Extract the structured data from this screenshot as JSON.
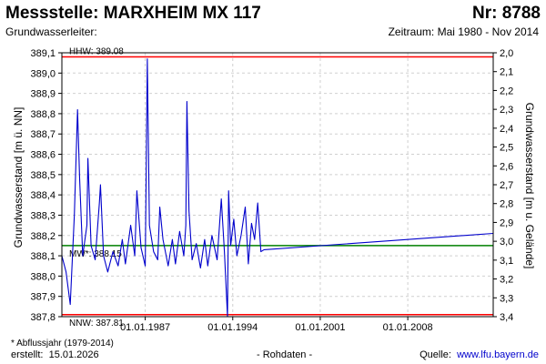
{
  "header": {
    "title": "Messstelle: MARXHEIM MX 117",
    "number": "Nr: 8788",
    "subtitle_left": "Grundwasserleiter:",
    "subtitle_right": "Zeitraum: Mai 1980 - Nov 2014"
  },
  "footer": {
    "footnote": "* Abflussjahr (1979-2014)",
    "created_label": "erstellt:",
    "created_date": "15.01.2026",
    "raw_label": "- Rohdaten -",
    "source_label": "Quelle:",
    "source_link": "www.lfu.bayern.de"
  },
  "chart_data": {
    "type": "line",
    "ylabel_left": "Grundwasserstand [m ü. NN]",
    "ylabel_right": "Grundwasserstand [m u. Gelände]",
    "ylim_left": [
      387.8,
      389.1
    ],
    "ylim_right": [
      2.0,
      3.4
    ],
    "yticks_left": [
      "387,8",
      "387,9",
      "388,0",
      "388,1",
      "388,2",
      "388,3",
      "388,4",
      "388,5",
      "388,6",
      "388,7",
      "388,8",
      "388,9",
      "389,0",
      "389,1"
    ],
    "yticks_right": [
      "2,0",
      "2,1",
      "2,2",
      "2,3",
      "2,4",
      "2,5",
      "2,6",
      "2,7",
      "2,8",
      "2,9",
      "3,0",
      "3,1",
      "3,2",
      "3,3",
      "3,4"
    ],
    "x_range": [
      "1980-05",
      "2014-11"
    ],
    "xticks": [
      "01.01.1987",
      "01.01.1994",
      "01.01.2001",
      "01.01.2008"
    ],
    "grid": true,
    "reference_lines": [
      {
        "label": "HHW: 389.08",
        "value": 389.08,
        "color": "#ff0000"
      },
      {
        "label": "MW*: 388.15",
        "value": 388.15,
        "color": "#008000"
      },
      {
        "label": "NNW: 387.81",
        "value": 387.81,
        "color": "#ff0000"
      }
    ],
    "series": [
      {
        "color": "#0000cc",
        "points": [
          [
            "1980-05",
            388.1
          ],
          [
            "1980-09",
            388.02
          ],
          [
            "1981-01",
            387.86
          ],
          [
            "1981-05",
            388.3
          ],
          [
            "1981-08",
            388.82
          ],
          [
            "1981-10",
            388.48
          ],
          [
            "1982-01",
            388.1
          ],
          [
            "1982-05",
            388.25
          ],
          [
            "1982-06",
            388.58
          ],
          [
            "1982-09",
            388.15
          ],
          [
            "1983-01",
            388.08
          ],
          [
            "1983-05",
            388.36
          ],
          [
            "1983-06",
            388.45
          ],
          [
            "1983-09",
            388.1
          ],
          [
            "1984-01",
            388.02
          ],
          [
            "1984-06",
            388.12
          ],
          [
            "1984-11",
            388.05
          ],
          [
            "1985-03",
            388.18
          ],
          [
            "1985-06",
            388.06
          ],
          [
            "1985-11",
            388.25
          ],
          [
            "1986-03",
            388.1
          ],
          [
            "1986-05",
            388.42
          ],
          [
            "1986-09",
            388.14
          ],
          [
            "1987-01",
            388.05
          ],
          [
            "1987-03",
            389.07
          ],
          [
            "1987-05",
            388.25
          ],
          [
            "1987-09",
            388.12
          ],
          [
            "1988-01",
            388.08
          ],
          [
            "1988-03",
            388.34
          ],
          [
            "1988-06",
            388.18
          ],
          [
            "1988-11",
            388.05
          ],
          [
            "1989-03",
            388.18
          ],
          [
            "1989-06",
            388.06
          ],
          [
            "1989-10",
            388.22
          ],
          [
            "1990-02",
            388.1
          ],
          [
            "1990-04",
            388.25
          ],
          [
            "1990-05",
            388.86
          ],
          [
            "1990-07",
            388.32
          ],
          [
            "1990-10",
            388.08
          ],
          [
            "1991-02",
            388.16
          ],
          [
            "1991-06",
            388.04
          ],
          [
            "1991-10",
            388.18
          ],
          [
            "1992-01",
            388.05
          ],
          [
            "1992-05",
            388.2
          ],
          [
            "1992-10",
            388.08
          ],
          [
            "1993-02",
            388.38
          ],
          [
            "1993-05",
            388.12
          ],
          [
            "1993-08",
            387.8
          ],
          [
            "1993-09",
            388.42
          ],
          [
            "1993-11",
            388.15
          ],
          [
            "1994-02",
            388.28
          ],
          [
            "1994-05",
            388.1
          ],
          [
            "1994-09",
            388.2
          ],
          [
            "1995-01",
            388.34
          ],
          [
            "1995-04",
            388.06
          ],
          [
            "1995-07",
            388.26
          ],
          [
            "1995-10",
            388.18
          ],
          [
            "1996-01",
            388.36
          ],
          [
            "1996-04",
            388.12
          ],
          [
            "1996-07",
            388.13
          ],
          [
            "2014-11",
            388.21
          ]
        ]
      }
    ]
  }
}
